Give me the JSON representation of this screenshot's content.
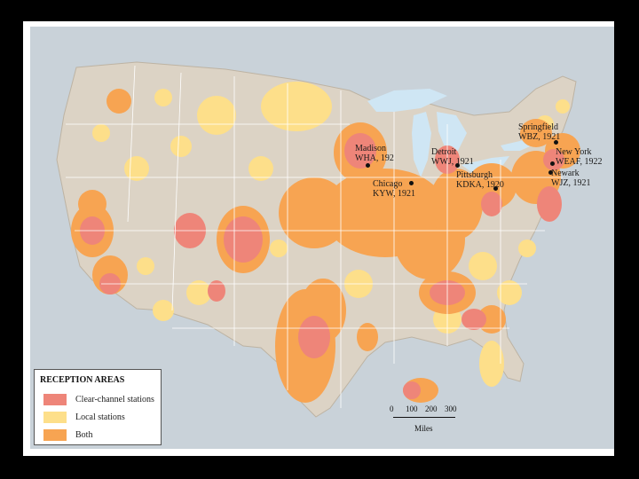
{
  "legend": {
    "title": "RECEPTION AREAS",
    "items": [
      {
        "label": "Clear-channel stations",
        "color": "#ee8579"
      },
      {
        "label": "Local stations",
        "color": "#fddf8a"
      },
      {
        "label": "Both",
        "color": "#f7a452"
      }
    ]
  },
  "scale": {
    "ticks": [
      "0",
      "100",
      "200",
      "300"
    ],
    "units": "Miles"
  },
  "stations": [
    {
      "id": "madison",
      "lines": [
        "Madison",
        "WHA, 192"
      ]
    },
    {
      "id": "chicago",
      "lines": [
        "Chicago",
        "KYW, 1921"
      ]
    },
    {
      "id": "detroit",
      "lines": [
        "Detroit",
        "WWJ, 1921"
      ]
    },
    {
      "id": "pittsburgh",
      "lines": [
        "Pittsburgh",
        "KDKA, 1920"
      ]
    },
    {
      "id": "springfield",
      "lines": [
        "Springfield",
        "WBZ, 1921"
      ]
    },
    {
      "id": "newyork",
      "lines": [
        "New York",
        "WEAF, 1922"
      ]
    },
    {
      "id": "newark",
      "lines": [
        "Newark",
        "WJZ, 1921"
      ]
    }
  ],
  "colors": {
    "water": "#c9d2d9",
    "land": "#dcd3c5",
    "lakes": "#cfe6f4",
    "border": "#ffffff",
    "clear_channel": "#ee8579",
    "local": "#fddf8a",
    "both": "#f7a452"
  }
}
